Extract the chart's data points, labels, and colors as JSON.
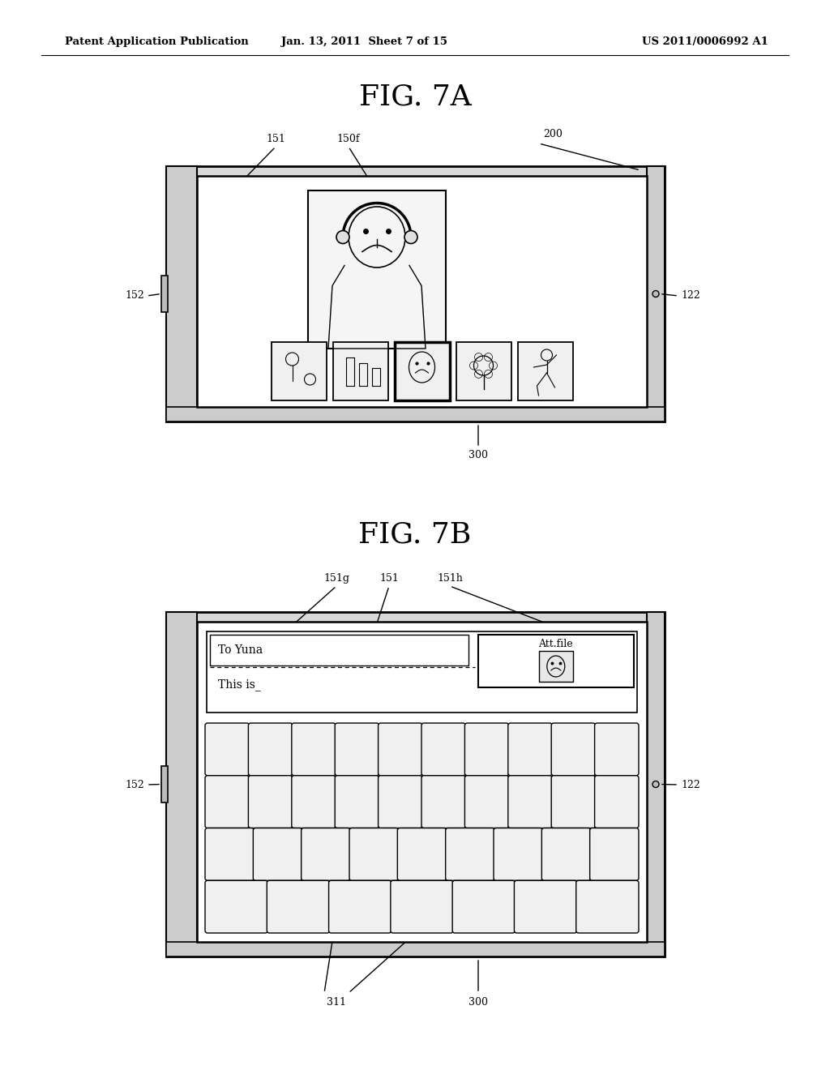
{
  "header_left": "Patent Application Publication",
  "header_mid": "Jan. 13, 2011  Sheet 7 of 15",
  "header_right": "US 2011/0006992 A1",
  "fig7a_title": "FIG. 7A",
  "fig7b_title": "FIG. 7B",
  "bg_color": "#ffffff",
  "line_color": "#000000"
}
